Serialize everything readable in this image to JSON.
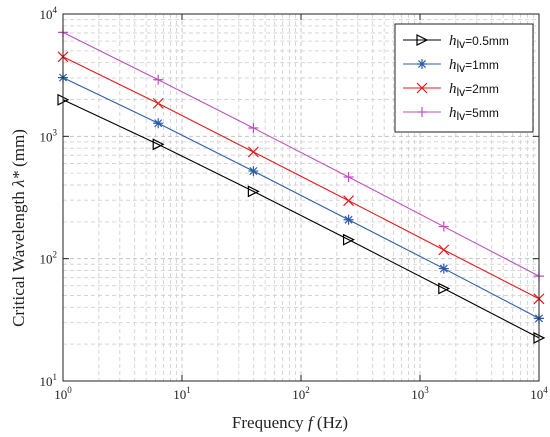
{
  "chart_data": {
    "type": "line",
    "xscale": "log",
    "yscale": "log",
    "xlim": [
      1,
      10000
    ],
    "ylim": [
      10,
      10000
    ],
    "grid": true,
    "legend_position": "top-right",
    "xlabel": {
      "text": "Frequency ",
      "symbol": "f",
      "unit": " (Hz)"
    },
    "ylabel": {
      "text": "Critical Wavelength ",
      "symbol": "λ*",
      "unit": " (mm)"
    },
    "x_ticks": [
      {
        "base": "10",
        "exp": "0"
      },
      {
        "base": "10",
        "exp": "1"
      },
      {
        "base": "10",
        "exp": "2"
      },
      {
        "base": "10",
        "exp": "3"
      },
      {
        "base": "10",
        "exp": "4"
      }
    ],
    "y_ticks": [
      {
        "base": "10",
        "exp": "1"
      },
      {
        "base": "10",
        "exp": "2"
      },
      {
        "base": "10",
        "exp": "3"
      },
      {
        "base": "10",
        "exp": "4"
      }
    ],
    "x": [
      1,
      6.31,
      39.8,
      251,
      1585,
      10000
    ],
    "series": [
      {
        "name_symbol": "h",
        "name_sub": "lv",
        "name_value": "=0.5mm",
        "color": "#000000",
        "marker": "triangle-right",
        "values": [
          1990,
          860,
          355,
          143,
          57,
          22.5
        ]
      },
      {
        "name_symbol": "h",
        "name_sub": "lv",
        "name_value": "=1mm",
        "color": "#2e5ea8",
        "marker": "asterisk",
        "values": [
          3020,
          1280,
          520,
          208,
          83,
          32.5
        ]
      },
      {
        "name_symbol": "h",
        "name_sub": "lv",
        "name_value": "=2mm",
        "color": "#e8191d",
        "marker": "cross",
        "values": [
          4470,
          1860,
          745,
          298,
          118,
          47
        ]
      },
      {
        "name_symbol": "h",
        "name_sub": "lv",
        "name_value": "=5mm",
        "color": "#c04fc0",
        "marker": "plus",
        "values": [
          7080,
          2900,
          1170,
          465,
          183,
          72
        ]
      }
    ]
  }
}
